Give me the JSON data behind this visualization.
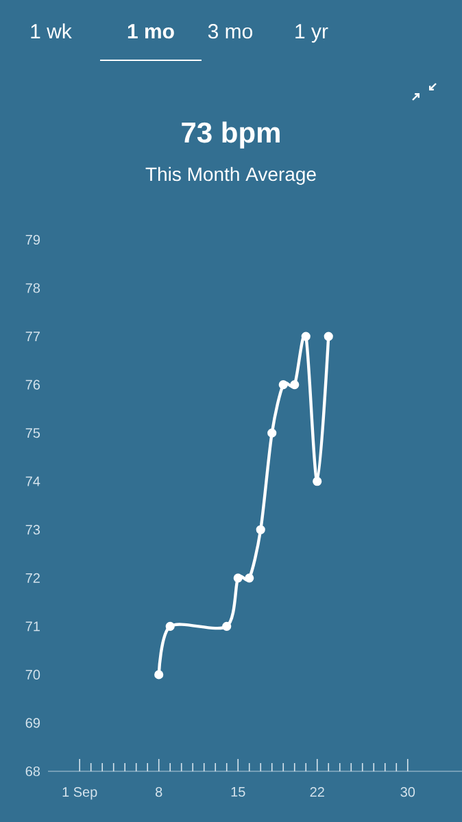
{
  "chart_data": {
    "type": "line",
    "title": "73 bpm",
    "subtitle": "This Month Average",
    "annotations": [
      "1 wk",
      "1 mo",
      "3 mo",
      "1 yr"
    ],
    "x": [
      8,
      9,
      14,
      15,
      16,
      17,
      18,
      19,
      20,
      21,
      22,
      23
    ],
    "series": [
      {
        "color": "#ffffff",
        "values": [
          70,
          71,
          71,
          72,
          72,
          73,
          75,
          76,
          76,
          77,
          74,
          77
        ]
      }
    ],
    "xlim": [
      -1.8,
      34.8
    ],
    "xticks": [
      {
        "value": 1,
        "label": "1 Sep"
      },
      {
        "value": 2,
        "label": null
      },
      {
        "value": 3,
        "label": null
      },
      {
        "value": 4,
        "label": null
      },
      {
        "value": 5,
        "label": null
      },
      {
        "value": 6,
        "label": null
      },
      {
        "value": 7,
        "label": null
      },
      8,
      {
        "value": 9,
        "label": null
      },
      {
        "value": 10,
        "label": null
      },
      {
        "value": 11,
        "label": null
      },
      {
        "value": 12,
        "label": null
      },
      {
        "value": 13,
        "label": null
      },
      {
        "value": 14,
        "label": null
      },
      15,
      {
        "value": 16,
        "label": null
      },
      {
        "value": 17,
        "label": null
      },
      {
        "value": 18,
        "label": null
      },
      {
        "value": 19,
        "label": null
      },
      {
        "value": 20,
        "label": null
      },
      {
        "value": 21,
        "label": null
      },
      22,
      {
        "value": 23,
        "label": null
      },
      {
        "value": 24,
        "label": null
      },
      {
        "value": 25,
        "label": null
      },
      {
        "value": 26,
        "label": null
      },
      {
        "value": 27,
        "label": null
      },
      {
        "value": 28,
        "label": null
      },
      {
        "value": 29,
        "label": null
      },
      30
    ],
    "ylim": [
      68,
      79
    ],
    "yticks": [
      68,
      69,
      70,
      71,
      72,
      73,
      74,
      75,
      76,
      77,
      78,
      79
    ],
    "grid": false,
    "marker": "circle",
    "line_style": "solid"
  }
}
